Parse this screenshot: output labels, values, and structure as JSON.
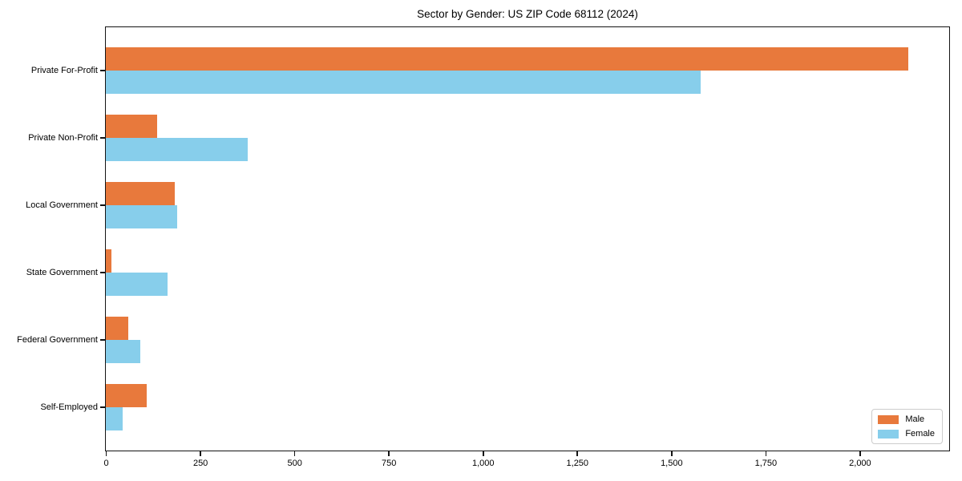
{
  "title": "Sector by Gender: US ZIP Code 68112 (2024)",
  "colors": {
    "male": "#e8793c",
    "female": "#87ceeb",
    "axis": "#141414",
    "background": "#ffffff",
    "legend_border": "#cccccc"
  },
  "chart_data": {
    "type": "bar",
    "orientation": "horizontal",
    "title": "Sector by Gender: US ZIP Code 68112 (2024)",
    "xlabel": "",
    "ylabel": "",
    "categories": [
      "Private For-Profit",
      "Private Non-Profit",
      "Local Government",
      "State Government",
      "Federal Government",
      "Self-Employed"
    ],
    "series": [
      {
        "name": "Male",
        "color": "#e8793c",
        "values": [
          2130,
          135,
          182,
          15,
          59,
          108
        ]
      },
      {
        "name": "Female",
        "color": "#87ceeb",
        "values": [
          1578,
          377,
          190,
          163,
          91,
          44
        ]
      }
    ],
    "xlim": [
      0,
      2235
    ],
    "xticks": [
      0,
      250,
      500,
      750,
      1000,
      1250,
      1500,
      1750,
      2000
    ],
    "xtick_labels": [
      "0",
      "250",
      "500",
      "750",
      "1,000",
      "1,250",
      "1,500",
      "1,750",
      "2,000"
    ],
    "grid": false,
    "legend_position": "lower right"
  },
  "legend": {
    "items": [
      {
        "label": "Male",
        "color": "#e8793c"
      },
      {
        "label": "Female",
        "color": "#87ceeb"
      }
    ]
  }
}
